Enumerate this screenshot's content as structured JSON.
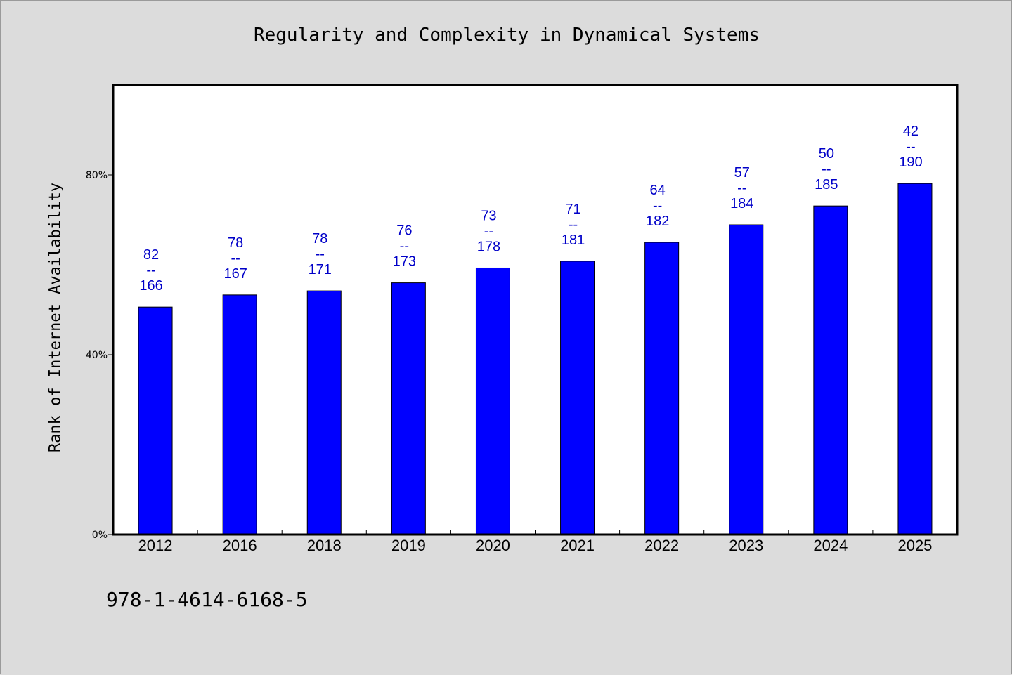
{
  "chart_data": {
    "type": "bar",
    "title": "Regularity and Complexity in Dynamical Systems",
    "xlabel": "",
    "ylabel": "Rank of Internet Availability",
    "categories": [
      "2012",
      "2016",
      "2018",
      "2019",
      "2020",
      "2021",
      "2022",
      "2023",
      "2024",
      "2025"
    ],
    "values": [
      50.6,
      53.3,
      54.2,
      56.0,
      59.3,
      60.8,
      65.0,
      68.9,
      73.1,
      78.1
    ],
    "value_unit": "%",
    "ylim": [
      0,
      100
    ],
    "yticks": [
      0,
      40,
      80
    ],
    "ytick_labels": [
      "0%",
      "40%",
      "80%"
    ],
    "data_labels": [
      {
        "top": "82",
        "sep": "--",
        "bottom": "166"
      },
      {
        "top": "78",
        "sep": "--",
        "bottom": "167"
      },
      {
        "top": "78",
        "sep": "--",
        "bottom": "171"
      },
      {
        "top": "76",
        "sep": "--",
        "bottom": "173"
      },
      {
        "top": "73",
        "sep": "--",
        "bottom": "178"
      },
      {
        "top": "71",
        "sep": "--",
        "bottom": "181"
      },
      {
        "top": "64",
        "sep": "--",
        "bottom": "182"
      },
      {
        "top": "57",
        "sep": "--",
        "bottom": "184"
      },
      {
        "top": "50",
        "sep": "--",
        "bottom": "185"
      },
      {
        "top": "42",
        "sep": "--",
        "bottom": "190"
      }
    ],
    "bar_color": "#0000ff",
    "label_color": "#0000c8",
    "background_color": "#dcdcdc",
    "plot_background": "#ffffff",
    "grid": false,
    "legend": "none"
  },
  "footer": {
    "isbn": "978-1-4614-6168-5"
  }
}
